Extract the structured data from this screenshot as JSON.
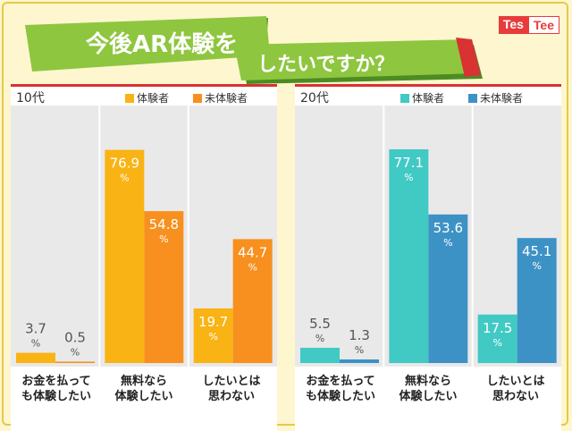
{
  "title": {
    "line1": "今後AR体験を",
    "line2": "したいですか？"
  },
  "brand": {
    "left": "Tes",
    "right": "Tee"
  },
  "colors": {
    "banner": "#8ec63f",
    "banner_dark": "#4d8c23",
    "red": "#d93232"
  },
  "chart_data": [
    {
      "type": "bar",
      "title": "10代",
      "categories": [
        [
          "お金を払って",
          "も体験したい"
        ],
        [
          "無料なら",
          "体験したい"
        ],
        [
          "したいとは",
          "思わない"
        ]
      ],
      "series": [
        {
          "name": "体験者",
          "color": "#f9b315",
          "values": [
            3.7,
            76.9,
            19.7
          ]
        },
        {
          "name": "未体験者",
          "color": "#f7901e",
          "values": [
            0.5,
            54.8,
            44.7
          ]
        }
      ],
      "unit": "%",
      "ylim": [
        0,
        80
      ]
    },
    {
      "type": "bar",
      "title": "20代",
      "categories": [
        [
          "お金を払って",
          "も体験したい"
        ],
        [
          "無料なら",
          "体験したい"
        ],
        [
          "したいとは",
          "思わない"
        ]
      ],
      "series": [
        {
          "name": "体験者",
          "color": "#41c9c4",
          "values": [
            5.5,
            77.1,
            17.5
          ]
        },
        {
          "name": "未体験者",
          "color": "#3d92c5",
          "values": [
            1.3,
            53.6,
            45.1
          ]
        }
      ],
      "unit": "%",
      "ylim": [
        0,
        80
      ]
    }
  ]
}
